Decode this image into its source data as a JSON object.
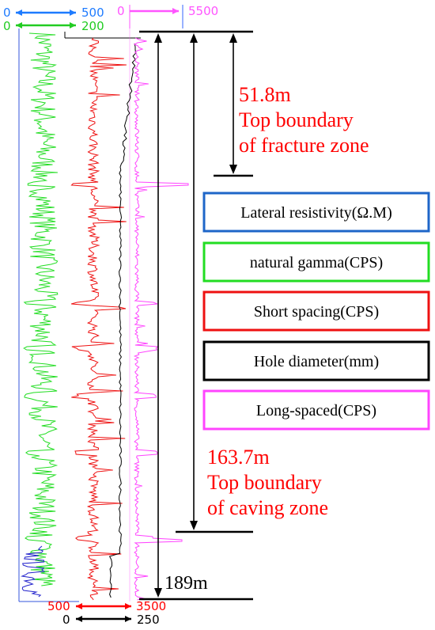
{
  "chart_data": {
    "type": "line",
    "title": "",
    "scales": {
      "resistivity": {
        "min": "0",
        "max": "500",
        "color": "#1e7bff"
      },
      "gamma": {
        "min": "0",
        "max": "200",
        "color": "#22cc22"
      },
      "long_spaced": {
        "min": "0",
        "max": "5500",
        "color": "#ff55ff"
      },
      "short_spacing": {
        "min": "500",
        "max": "3500",
        "color": "#ff0000"
      },
      "hole_diameter": {
        "min": "0",
        "max": "250",
        "color": "#000000"
      }
    },
    "legend": [
      {
        "label": "Lateral resistivity(Ω.M)",
        "color": "#1e66c8"
      },
      {
        "label": "natural gamma(CPS)",
        "color": "#22dd22"
      },
      {
        "label": "Short spacing(CPS)",
        "color": "#ee1111"
      },
      {
        "label": "Hole diameter(mm)",
        "color": "#000000"
      },
      {
        "label": "Long-spaced(CPS)",
        "color": "#ff44ff"
      }
    ],
    "annotations": {
      "fracture": {
        "depth": "51.8m",
        "line1": "Top boundary",
        "line2": "of fracture zone"
      },
      "caving": {
        "depth": "163.7m",
        "line1": "Top boundary",
        "line2": "of caving zone"
      },
      "total_depth": "189m"
    }
  }
}
